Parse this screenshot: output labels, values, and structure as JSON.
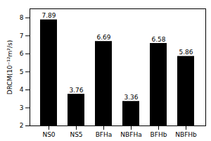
{
  "chart_data": {
    "type": "bar",
    "categories": [
      "NS0",
      "NS5",
      "BFHa",
      "NBFHa",
      "BFHb",
      "NBFHb"
    ],
    "values": [
      7.89,
      3.76,
      6.69,
      3.36,
      6.58,
      5.86
    ],
    "ylabel": "DRCM(10⁻¹²m²/s)",
    "ylim": [
      2,
      8.5
    ],
    "yticks": [
      2,
      3,
      4,
      5,
      6,
      7,
      8
    ],
    "data_labels": true,
    "grid": false
  }
}
